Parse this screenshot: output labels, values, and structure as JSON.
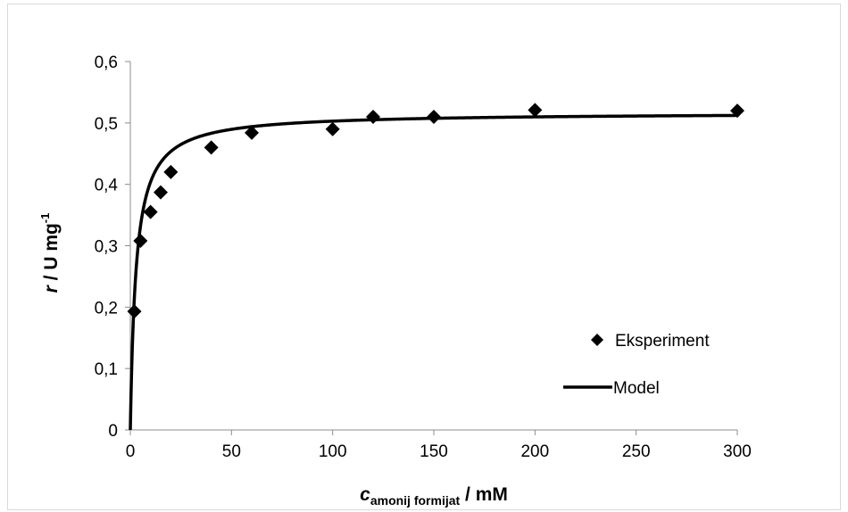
{
  "chart_data": {
    "type": "scatter",
    "xlabel": {
      "var": "c",
      "sub": "amonij formijat",
      "rest": " / mM"
    },
    "ylabel": {
      "var": "r",
      "rest": " / U mg",
      "sup": "-1"
    },
    "xlim": [
      0,
      300
    ],
    "ylim": [
      0,
      0.6
    ],
    "x_ticks": [
      0,
      50,
      100,
      150,
      200,
      250,
      300
    ],
    "y_ticks": [
      0,
      0.1,
      0.2,
      0.3,
      0.4,
      0.5,
      0.6
    ],
    "x_tick_labels": [
      "0",
      "50",
      "100",
      "150",
      "200",
      "250",
      "300"
    ],
    "y_tick_labels": [
      "0",
      "0,1",
      "0,2",
      "0,3",
      "0,4",
      "0,5",
      "0,6"
    ],
    "grid": false,
    "legend_position": "right",
    "series": [
      {
        "name": "Eksperiment",
        "marker": "diamond",
        "color": "#000000",
        "x": [
          2,
          5,
          10,
          15,
          20,
          40,
          60,
          100,
          120,
          150,
          200,
          300
        ],
        "y": [
          0.193,
          0.308,
          0.355,
          0.387,
          0.42,
          0.46,
          0.484,
          0.49,
          0.51,
          0.51,
          0.521,
          0.52
        ]
      },
      {
        "name": "Model",
        "style": "line",
        "color": "#000000",
        "model": {
          "form": "michaelis-menten",
          "Vmax": 0.517,
          "Km": 2.8
        },
        "x_range": [
          0,
          300
        ]
      }
    ]
  }
}
